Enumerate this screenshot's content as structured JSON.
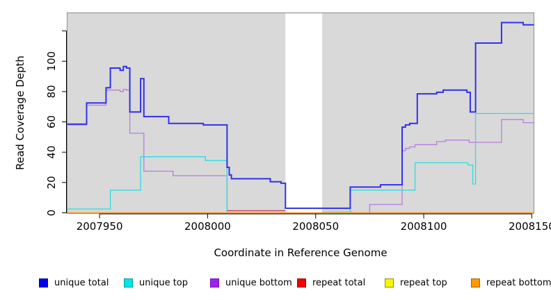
{
  "chart_data": {
    "type": "line",
    "step": true,
    "title": "",
    "xlabel": "Coordinate in Reference Genome",
    "ylabel": "Read Coverage Depth",
    "xlim": [
      2007935,
      2008151
    ],
    "ylim": [
      0,
      132
    ],
    "x_ticks": [
      2007950,
      2008000,
      2008050,
      2008100,
      2008150
    ],
    "x_tick_labels": [
      "2007950",
      "2008000",
      "2008050",
      "2008100",
      "2008150"
    ],
    "y_ticks": [
      0,
      20,
      40,
      60,
      80,
      100,
      120
    ],
    "y_tick_labels": [
      "0",
      "20",
      "40",
      "60",
      "80",
      "100",
      ""
    ],
    "grid": false,
    "plot_bg": "#d9d9d9",
    "box_border": "#8c8c8c",
    "axis_color": "#000000",
    "gap_region": {
      "from": 2008036,
      "to": 2008053,
      "fill": "#ffffff"
    },
    "legend_position": "bottom",
    "draw_sequence": [
      "repeat top",
      "repeat total",
      "repeat bottom",
      "__overlays__",
      "unique bottom",
      "unique top",
      "unique total"
    ],
    "series": [
      {
        "name": "unique total",
        "color": "#3030ee",
        "width": 2,
        "segments": [
          [
            [
              2007935,
              58.5
            ],
            [
              2007944,
              72.5
            ],
            [
              2007953,
              82.5
            ],
            [
              2007955,
              95.5
            ],
            [
              2007959.5,
              94
            ],
            [
              2007961,
              96.5
            ],
            [
              2007962.5,
              95.5
            ],
            [
              2007964,
              66.5
            ],
            [
              2007969,
              88.5
            ],
            [
              2007970.5,
              63.5
            ],
            [
              2007982,
              59
            ],
            [
              2007998,
              58
            ],
            [
              2008009,
              30
            ],
            [
              2008010,
              25
            ],
            [
              2008011,
              22.5
            ],
            [
              2008029,
              20.5
            ],
            [
              2008034,
              19.5
            ],
            [
              2008036,
              3
            ],
            [
              2008066,
              17
            ],
            [
              2008080,
              18.5
            ],
            [
              2008090,
              56.5
            ],
            [
              2008091.5,
              58
            ],
            [
              2008093.5,
              59
            ],
            [
              2008097,
              78.5
            ],
            [
              2008106,
              79.5
            ],
            [
              2008109,
              81
            ],
            [
              2008120,
              79.5
            ],
            [
              2008121.5,
              66.5
            ],
            [
              2008124,
              112
            ],
            [
              2008136,
              125.5
            ],
            [
              2008146,
              124
            ],
            [
              2008151,
              124
            ]
          ]
        ]
      },
      {
        "name": "unique top",
        "color": "#2adede",
        "width": 1.3,
        "segments": [
          [
            [
              2007935,
              2.5
            ],
            [
              2007955,
              15
            ],
            [
              2007969,
              37
            ],
            [
              2007999,
              34.5
            ],
            [
              2008009,
              0
            ]
          ],
          [
            [
              2008066,
              1
            ],
            [
              2008066,
              15
            ],
            [
              2008096,
              33
            ],
            [
              2008120.5,
              31.5
            ],
            [
              2008122.7,
              19
            ],
            [
              2008124,
              65.5
            ],
            [
              2008151,
              65.5
            ]
          ]
        ]
      },
      {
        "name": "unique bottom",
        "color": "#b87cdc",
        "width": 1.3,
        "segments": [
          [
            [
              2007935,
              58
            ],
            [
              2007944,
              71
            ],
            [
              2007953,
              81
            ],
            [
              2007959.5,
              80
            ],
            [
              2007961,
              81.5
            ],
            [
              2007962.5,
              81
            ],
            [
              2007964,
              52.5
            ],
            [
              2007970.5,
              27.5
            ],
            [
              2007984,
              24.5
            ],
            [
              2008009,
              1
            ]
          ],
          [
            [
              2008075,
              0
            ],
            [
              2008075,
              5.5
            ],
            [
              2008090,
              41
            ],
            [
              2008091.5,
              42.5
            ],
            [
              2008093.5,
              43.5
            ],
            [
              2008096,
              45
            ],
            [
              2008106,
              47
            ],
            [
              2008110,
              48
            ],
            [
              2008121,
              46.5
            ],
            [
              2008136,
              61.5
            ],
            [
              2008146,
              59.5
            ],
            [
              2008151,
              59.5
            ]
          ]
        ]
      },
      {
        "name": "repeat total",
        "color": "#ee2222",
        "width": 1.2,
        "segments": [
          [
            [
              2007935,
              0
            ],
            [
              2008151,
              0
            ]
          ]
        ]
      },
      {
        "name": "repeat top",
        "color": "#f0f000",
        "width": 1.2,
        "segments": [
          [
            [
              2007935,
              0
            ],
            [
              2008151,
              0
            ]
          ]
        ]
      },
      {
        "name": "repeat bottom",
        "color": "#ff9e2c",
        "width": 1.5,
        "segments": [
          [
            [
              2007935,
              0
            ],
            [
              2008151,
              0
            ]
          ]
        ]
      }
    ],
    "zero_line_overlays": [
      {
        "from": 2008009,
        "to": 2008036,
        "value": 1.4,
        "color": "#c43a78"
      },
      {
        "from": 2008053,
        "to": 2008067,
        "value": 0.6,
        "color": "#8fd48f"
      }
    ]
  },
  "legend": {
    "items": [
      {
        "label": "unique total",
        "swatch": "#0000ee",
        "border": "#0000aa"
      },
      {
        "label": "unique top",
        "swatch": "#00e5e5",
        "border": "#009a9a"
      },
      {
        "label": "unique bottom",
        "swatch": "#a020f0",
        "border": "#7210b0"
      },
      {
        "label": "repeat total",
        "swatch": "#ee0000",
        "border": "#a00000"
      },
      {
        "label": "repeat top",
        "swatch": "#f5f500",
        "border": "#8f8f00"
      },
      {
        "label": "repeat bottom",
        "swatch": "#ff9900",
        "border": "#a96400"
      }
    ]
  }
}
